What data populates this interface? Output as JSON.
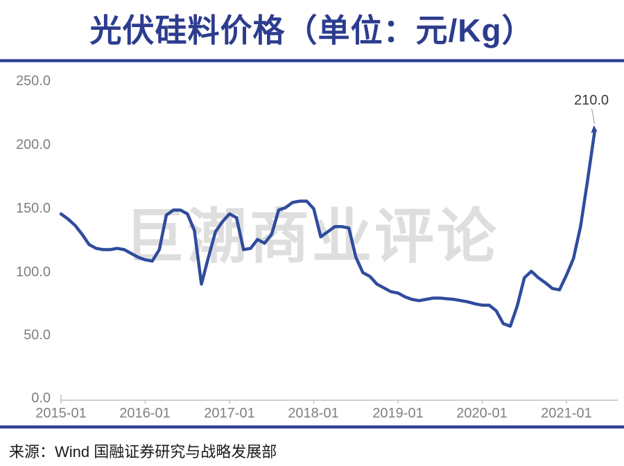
{
  "header": {
    "title": "光伏硅料价格（单位：元/Kg）"
  },
  "footer": {
    "source": "来源：Wind  国融证券研究与战略发展部"
  },
  "watermark": {
    "text": "巨潮商业评论"
  },
  "colors": {
    "navy": "#2c3c8e",
    "line": "#2f4c9c",
    "axis_text": "#7f7f7f",
    "axis_line": "#c0c0c0",
    "watermark": "#dedede",
    "annotation_text": "#3a3a3a",
    "source_text": "#1a1a1a",
    "leader_line": "#a6a6a6"
  },
  "chart_data": {
    "type": "line",
    "title": "光伏硅料价格（单位：元/Kg）",
    "ylabel": "",
    "xlabel": "",
    "unit": "元/Kg",
    "ylim": [
      0,
      250
    ],
    "grid": false,
    "legend": false,
    "y_ticks": [
      "250.0",
      "200.0",
      "150.0",
      "100.0",
      "50.0",
      "0.0"
    ],
    "x_ticks": [
      "2015-01",
      "2016-01",
      "2017-01",
      "2018-01",
      "2019-01",
      "2020-01",
      "2021-01"
    ],
    "x_start": "2015-01",
    "x_end": "2021-05",
    "x_interval": "monthly",
    "annotation": {
      "label": "210.0",
      "x": "2021-05",
      "value": 210.0
    },
    "series": [
      {
        "name": "光伏硅料价格",
        "values": [
          146,
          142,
          137,
          130,
          122,
          119,
          118,
          118,
          119,
          118,
          115,
          112,
          110,
          109,
          118,
          145,
          149,
          149,
          146,
          133,
          91,
          112,
          132,
          140,
          146,
          143,
          118,
          119,
          126,
          123,
          130,
          149,
          151,
          155,
          156,
          156,
          150,
          128,
          132,
          136,
          136,
          135,
          112,
          100,
          97,
          91,
          88,
          85,
          84,
          81,
          79,
          78,
          79,
          80,
          80,
          79.5,
          79,
          78,
          77,
          75.5,
          74.5,
          74.5,
          70,
          60,
          58,
          74,
          96,
          101,
          96,
          92,
          87.5,
          86.5,
          98,
          111,
          136,
          172,
          210
        ]
      }
    ]
  }
}
